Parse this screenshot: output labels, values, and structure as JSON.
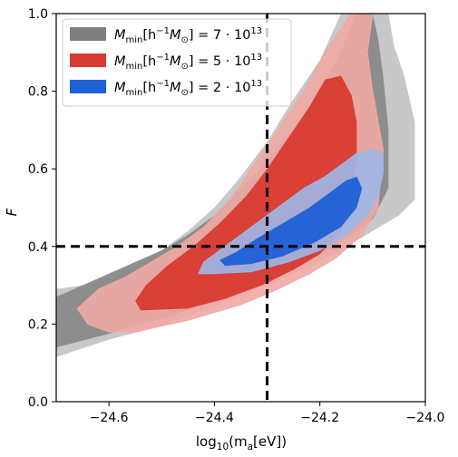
{
  "chart_data": {
    "type": "contour",
    "xlim": [
      -24.7,
      -24.0
    ],
    "ylim": [
      0.0,
      1.0
    ],
    "x_ticks": [
      -24.6,
      -24.4,
      -24.2,
      -24.0
    ],
    "y_ticks": [
      0.0,
      0.2,
      0.4,
      0.6,
      0.8,
      1.0
    ],
    "x_tick_labels": [
      "−24.6",
      "−24.4",
      "−24.2",
      "−24.0"
    ],
    "y_tick_labels": [
      "0.0",
      "0.2",
      "0.4",
      "0.6",
      "0.8",
      "1.0"
    ],
    "xlabel": {
      "pre": "log",
      "sub": "10",
      "mid": "(m",
      "sub2": "a",
      "post": "[eV])"
    },
    "ylabel": "F",
    "reference_lines": {
      "vertical_x": -24.3,
      "horizontal_y": 0.4,
      "style": "dashed",
      "color": "#000000"
    },
    "legend_position": "upper left",
    "series": [
      {
        "name_parts": {
          "lead": "M",
          "sub": "min",
          "body": "[h",
          "sup1": "−1",
          "body2": "M",
          "sub2": "⊙",
          "close": "] = 7 · 10",
          "sup2": "13"
        },
        "color_outer": "#c8c8c8",
        "color_inner": "#8a8a8a",
        "legend_color": "#7f7f7f",
        "outer": [
          [
            -24.7,
            0.115
          ],
          [
            -24.6,
            0.16
          ],
          [
            -24.5,
            0.195
          ],
          [
            -24.4,
            0.245
          ],
          [
            -24.3,
            0.3
          ],
          [
            -24.22,
            0.35
          ],
          [
            -24.16,
            0.39
          ],
          [
            -24.1,
            0.44
          ],
          [
            -24.05,
            0.48
          ],
          [
            -24.02,
            0.52
          ],
          [
            -24.02,
            0.72
          ],
          [
            -24.04,
            0.84
          ],
          [
            -24.06,
            0.92
          ],
          [
            -24.07,
            1.0
          ],
          [
            -24.16,
            1.0
          ],
          [
            -24.2,
            0.88
          ],
          [
            -24.25,
            0.78
          ],
          [
            -24.3,
            0.67
          ],
          [
            -24.35,
            0.58
          ],
          [
            -24.4,
            0.5
          ],
          [
            -24.45,
            0.44
          ],
          [
            -24.5,
            0.39
          ],
          [
            -24.55,
            0.35
          ],
          [
            -24.6,
            0.32
          ],
          [
            -24.65,
            0.3
          ],
          [
            -24.7,
            0.29
          ]
        ],
        "inner": [
          [
            -24.7,
            0.14
          ],
          [
            -24.6,
            0.175
          ],
          [
            -24.5,
            0.215
          ],
          [
            -24.4,
            0.26
          ],
          [
            -24.3,
            0.31
          ],
          [
            -24.22,
            0.36
          ],
          [
            -24.16,
            0.41
          ],
          [
            -24.1,
            0.47
          ],
          [
            -24.07,
            0.55
          ],
          [
            -24.07,
            0.7
          ],
          [
            -24.08,
            0.84
          ],
          [
            -24.09,
            0.94
          ],
          [
            -24.1,
            1.0
          ],
          [
            -24.13,
            1.0
          ],
          [
            -24.16,
            0.9
          ],
          [
            -24.2,
            0.8
          ],
          [
            -24.25,
            0.7
          ],
          [
            -24.3,
            0.62
          ],
          [
            -24.35,
            0.55
          ],
          [
            -24.4,
            0.48
          ],
          [
            -24.45,
            0.43
          ],
          [
            -24.5,
            0.39
          ],
          [
            -24.55,
            0.36
          ],
          [
            -24.6,
            0.33
          ],
          [
            -24.65,
            0.3
          ],
          [
            -24.7,
            0.27
          ]
        ]
      },
      {
        "name_parts": {
          "lead": "M",
          "sub": "min",
          "body": "[h",
          "sup1": "−1",
          "body2": "M",
          "sub2": "⊙",
          "close": "] = 5 · 10",
          "sup2": "13"
        },
        "color_outer": "#f0a8a4",
        "color_inner": "#d83a30",
        "legend_color": "#d83a30",
        "outer": [
          [
            -24.66,
            0.24
          ],
          [
            -24.64,
            0.2
          ],
          [
            -24.6,
            0.18
          ],
          [
            -24.55,
            0.18
          ],
          [
            -24.45,
            0.21
          ],
          [
            -24.35,
            0.25
          ],
          [
            -24.28,
            0.29
          ],
          [
            -24.22,
            0.33
          ],
          [
            -24.17,
            0.37
          ],
          [
            -24.12,
            0.43
          ],
          [
            -24.09,
            0.5
          ],
          [
            -24.08,
            0.65
          ],
          [
            -24.1,
            0.8
          ],
          [
            -24.11,
            0.9
          ],
          [
            -24.1,
            1.0
          ],
          [
            -24.14,
            1.0
          ],
          [
            -24.19,
            0.9
          ],
          [
            -24.23,
            0.8
          ],
          [
            -24.28,
            0.7
          ],
          [
            -24.33,
            0.6
          ],
          [
            -24.37,
            0.52
          ],
          [
            -24.42,
            0.45
          ],
          [
            -24.47,
            0.4
          ],
          [
            -24.52,
            0.36
          ],
          [
            -24.57,
            0.32
          ],
          [
            -24.62,
            0.29
          ]
        ],
        "inner": [
          [
            -24.54,
            0.235
          ],
          [
            -24.45,
            0.24
          ],
          [
            -24.38,
            0.265
          ],
          [
            -24.31,
            0.3
          ],
          [
            -24.25,
            0.34
          ],
          [
            -24.2,
            0.38
          ],
          [
            -24.16,
            0.44
          ],
          [
            -24.14,
            0.52
          ],
          [
            -24.13,
            0.62
          ],
          [
            -24.13,
            0.72
          ],
          [
            -24.14,
            0.79
          ],
          [
            -24.16,
            0.84
          ],
          [
            -24.19,
            0.83
          ],
          [
            -24.22,
            0.76
          ],
          [
            -24.26,
            0.68
          ],
          [
            -24.3,
            0.6
          ],
          [
            -24.34,
            0.53
          ],
          [
            -24.39,
            0.46
          ],
          [
            -24.44,
            0.4
          ],
          [
            -24.49,
            0.35
          ],
          [
            -24.53,
            0.3
          ],
          [
            -24.55,
            0.26
          ]
        ]
      },
      {
        "name_parts": {
          "lead": "M",
          "sub": "min",
          "body": "[h",
          "sup1": "−1",
          "body2": "M",
          "sub2": "⊙",
          "close": "] = 2 · 10",
          "sup2": "13"
        },
        "color_outer": "#9db7e6",
        "color_inner": "#1f5fd6",
        "legend_color": "#1f62d8",
        "outer": [
          [
            -24.43,
            0.33
          ],
          [
            -24.4,
            0.33
          ],
          [
            -24.33,
            0.335
          ],
          [
            -24.26,
            0.36
          ],
          [
            -24.2,
            0.39
          ],
          [
            -24.15,
            0.43
          ],
          [
            -24.11,
            0.48
          ],
          [
            -24.09,
            0.53
          ],
          [
            -24.08,
            0.59
          ],
          [
            -24.08,
            0.64
          ],
          [
            -24.1,
            0.65
          ],
          [
            -24.13,
            0.64
          ],
          [
            -24.16,
            0.61
          ],
          [
            -24.19,
            0.58
          ],
          [
            -24.23,
            0.55
          ],
          [
            -24.27,
            0.51
          ],
          [
            -24.31,
            0.47
          ],
          [
            -24.35,
            0.43
          ],
          [
            -24.39,
            0.39
          ],
          [
            -24.42,
            0.36
          ]
        ],
        "inner": [
          [
            -24.38,
            0.35
          ],
          [
            -24.33,
            0.355
          ],
          [
            -24.27,
            0.375
          ],
          [
            -24.21,
            0.41
          ],
          [
            -24.16,
            0.45
          ],
          [
            -24.13,
            0.5
          ],
          [
            -24.12,
            0.55
          ],
          [
            -24.13,
            0.58
          ],
          [
            -24.15,
            0.57
          ],
          [
            -24.18,
            0.54
          ],
          [
            -24.22,
            0.5
          ],
          [
            -24.27,
            0.46
          ],
          [
            -24.32,
            0.42
          ],
          [
            -24.36,
            0.385
          ],
          [
            -24.39,
            0.365
          ]
        ]
      }
    ]
  }
}
